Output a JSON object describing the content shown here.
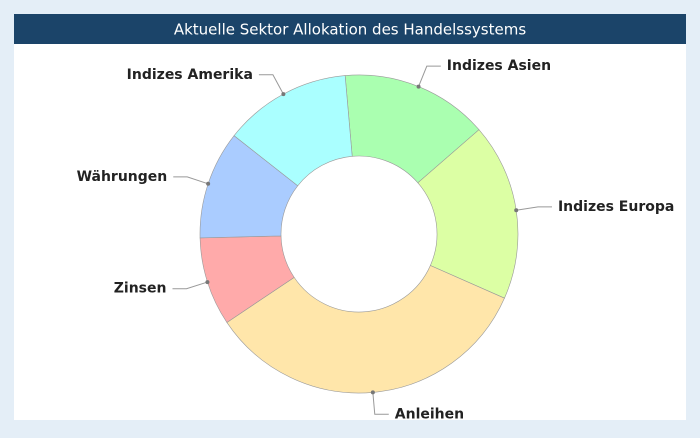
{
  "chart_data": {
    "type": "pie",
    "title": "Aktuelle Sektor Allokation des Handelssystems",
    "categories": [
      "Indizes Asien",
      "Indizes Europa",
      "Anleihen",
      "Zinsen",
      "Währungen",
      "Indizes Amerika"
    ],
    "values": [
      15,
      18,
      34,
      9,
      11,
      13
    ],
    "colors": [
      "#aaffb0",
      "#dcffa4",
      "#ffe6aa",
      "#ffaaaa",
      "#aaccff",
      "#aaffff"
    ],
    "donut": true
  }
}
